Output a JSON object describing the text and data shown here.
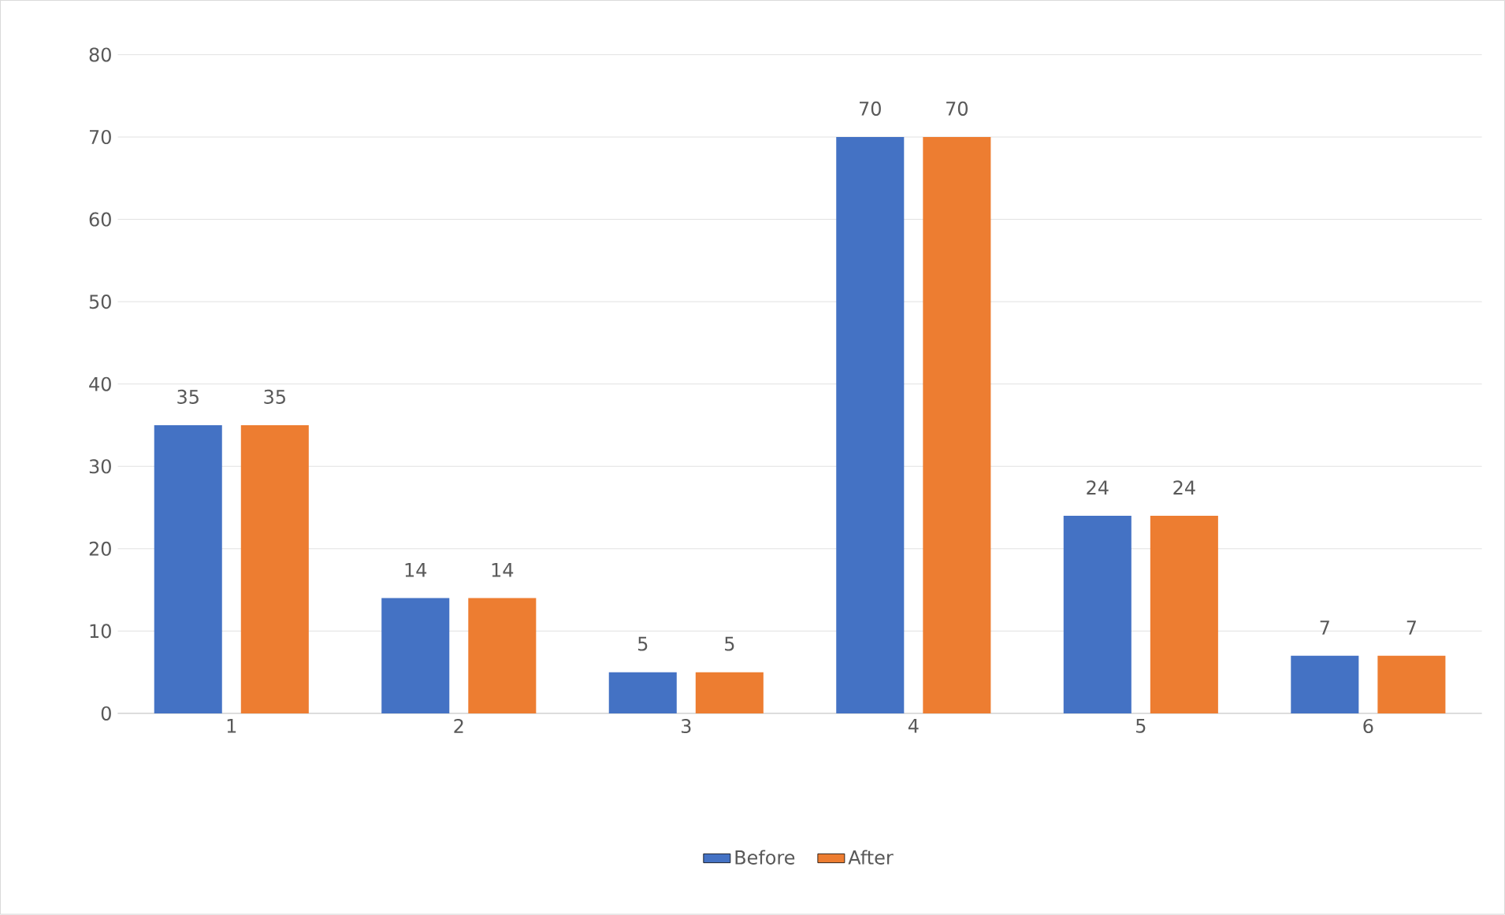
{
  "chart_data": {
    "type": "bar",
    "categories": [
      "1",
      "2",
      "3",
      "4",
      "5",
      "6"
    ],
    "series": [
      {
        "name": "Before",
        "color": "#4472c4",
        "values": [
          35,
          14,
          5,
          70,
          24,
          7
        ]
      },
      {
        "name": "After",
        "color": "#ed7d31",
        "values": [
          35,
          14,
          5,
          70,
          24,
          7
        ]
      }
    ],
    "ylim": [
      0,
      80
    ],
    "yticks": [
      0,
      10,
      20,
      30,
      40,
      50,
      60,
      70,
      80
    ],
    "grid": "y",
    "legend": "bottom",
    "data_labels": true
  }
}
